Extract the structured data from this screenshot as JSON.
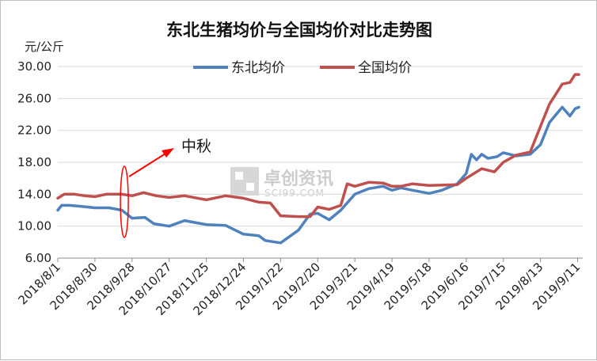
{
  "chart_data": {
    "type": "line",
    "title": "东北生猪均价与全国均价对比走势图",
    "ylabel": "元/公斤",
    "ylim": [
      6,
      30
    ],
    "yticks": [
      "30.00",
      "26.00",
      "22.00",
      "18.00",
      "14.00",
      "10.00",
      "6.00"
    ],
    "xlim": [
      "2018-08-01",
      "2019-09-15"
    ],
    "xtick_dates": [
      "2018-08-01",
      "2018-08-30",
      "2018-09-28",
      "2018-10-27",
      "2018-11-25",
      "2018-12-24",
      "2019-01-22",
      "2019-02-20",
      "2019-03-21",
      "2019-04-19",
      "2019-05-18",
      "2019-06-16",
      "2019-07-15",
      "2019-08-13",
      "2019-09-11"
    ],
    "xtick_labels": [
      "2018/8/1",
      "2018/8/30",
      "2018/9/28",
      "2018/10/27",
      "2018/11/25",
      "2018/12/24",
      "2019/1/22",
      "2019/2/20",
      "2019/3/21",
      "2019/4/19",
      "2019/5/18",
      "2019/6/16",
      "2019/7/15",
      "2019/8/13",
      "2019/9/11"
    ],
    "grid": "horizontal",
    "legend_position": "top",
    "series": [
      {
        "name": "东北均价",
        "color": "#4f81bd",
        "points": [
          [
            "2018-08-01",
            12.0
          ],
          [
            "2018-08-04",
            12.6
          ],
          [
            "2018-08-10",
            12.6
          ],
          [
            "2018-08-18",
            12.5
          ],
          [
            "2018-08-30",
            12.3
          ],
          [
            "2018-09-10",
            12.3
          ],
          [
            "2018-09-20",
            12.0
          ],
          [
            "2018-09-28",
            11.0
          ],
          [
            "2018-10-08",
            11.1
          ],
          [
            "2018-10-15",
            10.3
          ],
          [
            "2018-10-27",
            10.0
          ],
          [
            "2018-11-08",
            10.7
          ],
          [
            "2018-11-25",
            10.2
          ],
          [
            "2018-12-10",
            10.1
          ],
          [
            "2018-12-24",
            9.0
          ],
          [
            "2019-01-05",
            8.8
          ],
          [
            "2019-01-10",
            8.2
          ],
          [
            "2019-01-22",
            7.9
          ],
          [
            "2019-02-05",
            9.5
          ],
          [
            "2019-02-14",
            11.5
          ],
          [
            "2019-02-20",
            11.6
          ],
          [
            "2019-03-01",
            10.8
          ],
          [
            "2019-03-10",
            12.0
          ],
          [
            "2019-03-21",
            14.0
          ],
          [
            "2019-04-01",
            14.7
          ],
          [
            "2019-04-12",
            15.0
          ],
          [
            "2019-04-19",
            14.5
          ],
          [
            "2019-04-26",
            14.8
          ],
          [
            "2019-05-05",
            14.5
          ],
          [
            "2019-05-18",
            14.1
          ],
          [
            "2019-05-28",
            14.5
          ],
          [
            "2019-06-09",
            15.3
          ],
          [
            "2019-06-16",
            16.6
          ],
          [
            "2019-06-20",
            19.0
          ],
          [
            "2019-06-24",
            18.3
          ],
          [
            "2019-06-28",
            19.0
          ],
          [
            "2019-07-03",
            18.5
          ],
          [
            "2019-07-10",
            18.7
          ],
          [
            "2019-07-15",
            19.2
          ],
          [
            "2019-07-25",
            18.8
          ],
          [
            "2019-08-05",
            19.0
          ],
          [
            "2019-08-13",
            20.2
          ],
          [
            "2019-08-20",
            23.0
          ],
          [
            "2019-08-30",
            24.9
          ],
          [
            "2019-09-05",
            23.8
          ],
          [
            "2019-09-09",
            24.7
          ],
          [
            "2019-09-12",
            24.9
          ]
        ]
      },
      {
        "name": "全国均价",
        "color": "#c0504d",
        "points": [
          [
            "2018-08-01",
            13.5
          ],
          [
            "2018-08-06",
            14.0
          ],
          [
            "2018-08-14",
            14.0
          ],
          [
            "2018-08-22",
            13.8
          ],
          [
            "2018-08-30",
            13.7
          ],
          [
            "2018-09-08",
            14.0
          ],
          [
            "2018-09-20",
            14.0
          ],
          [
            "2018-09-28",
            13.8
          ],
          [
            "2018-10-07",
            14.2
          ],
          [
            "2018-10-17",
            13.8
          ],
          [
            "2018-10-27",
            13.6
          ],
          [
            "2018-11-08",
            13.8
          ],
          [
            "2018-11-25",
            13.3
          ],
          [
            "2018-12-10",
            13.8
          ],
          [
            "2018-12-24",
            13.5
          ],
          [
            "2019-01-05",
            13.0
          ],
          [
            "2019-01-14",
            12.9
          ],
          [
            "2019-01-22",
            11.3
          ],
          [
            "2019-02-05",
            11.2
          ],
          [
            "2019-02-14",
            11.2
          ],
          [
            "2019-02-20",
            12.4
          ],
          [
            "2019-03-01",
            12.1
          ],
          [
            "2019-03-10",
            12.6
          ],
          [
            "2019-03-15",
            15.3
          ],
          [
            "2019-03-21",
            15.0
          ],
          [
            "2019-04-01",
            15.5
          ],
          [
            "2019-04-12",
            15.4
          ],
          [
            "2019-04-19",
            15.0
          ],
          [
            "2019-04-26",
            15.0
          ],
          [
            "2019-05-05",
            15.3
          ],
          [
            "2019-05-18",
            15.1
          ],
          [
            "2019-06-09",
            15.2
          ],
          [
            "2019-06-16",
            16.0
          ],
          [
            "2019-06-28",
            17.2
          ],
          [
            "2019-07-08",
            16.8
          ],
          [
            "2019-07-15",
            18.0
          ],
          [
            "2019-07-25",
            18.9
          ],
          [
            "2019-08-05",
            19.3
          ],
          [
            "2019-08-13",
            22.5
          ],
          [
            "2019-08-20",
            25.3
          ],
          [
            "2019-08-30",
            27.8
          ],
          [
            "2019-09-05",
            28.0
          ],
          [
            "2019-09-09",
            29.0
          ],
          [
            "2019-09-12",
            29.0
          ]
        ]
      }
    ],
    "annotations": [
      {
        "text": "中秋",
        "at_date": "2018-09-22"
      }
    ]
  },
  "watermark": {
    "cn": "卓创资讯",
    "en": "SCI99.COM"
  }
}
